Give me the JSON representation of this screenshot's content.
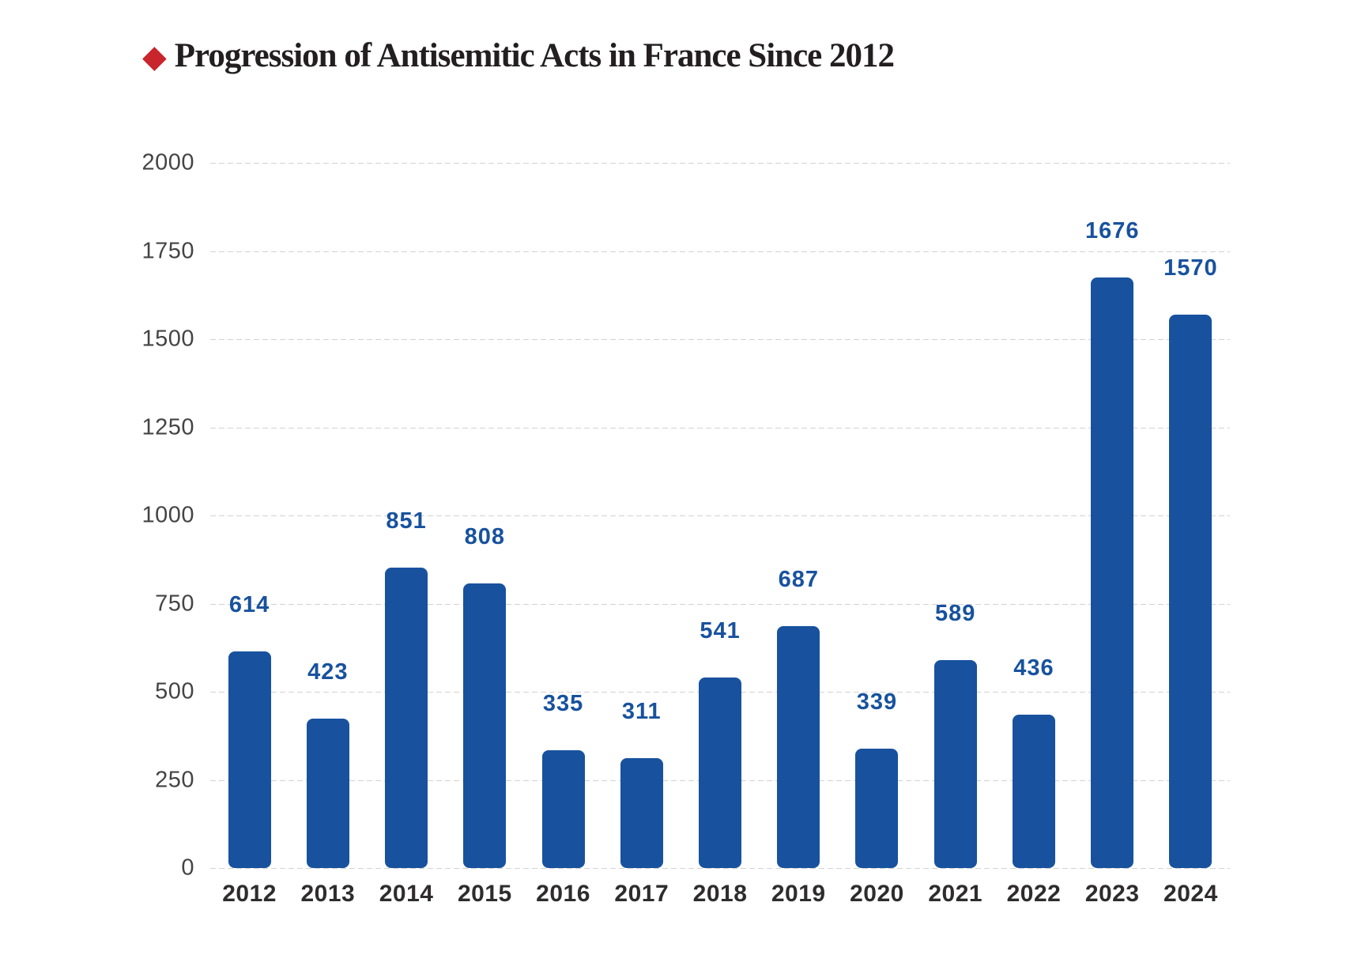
{
  "title": {
    "icon": "diamond-bullet",
    "icon_glyph": "◆",
    "text": "Progression of Antisemitic Acts in France Since 2012"
  },
  "colors": {
    "bar": "#18529e",
    "value_label": "#18529e",
    "title_text": "#231f20",
    "diamond_red": "#c8252c",
    "gridline": "#d2d2d2",
    "y_axis_label": "#444444",
    "x_axis_label": "#2e2c2d",
    "background": "#ffffff"
  },
  "chart_data": {
    "type": "bar",
    "title": "Progression of Antisemitic Acts in France Since 2012",
    "categories": [
      "2012",
      "2013",
      "2014",
      "2015",
      "2016",
      "2017",
      "2018",
      "2019",
      "2020",
      "2021",
      "2022",
      "2023",
      "2024"
    ],
    "values": [
      614,
      423,
      851,
      808,
      335,
      311,
      541,
      687,
      339,
      589,
      436,
      1676,
      1570
    ],
    "xlabel": "",
    "ylabel": "",
    "ylim": [
      0,
      2000
    ],
    "yticks": [
      0,
      250,
      500,
      750,
      1000,
      1250,
      1500,
      1750,
      2000
    ],
    "grid": "horizontal-dashed",
    "legend_position": "none",
    "data_labels": "above-bars"
  }
}
